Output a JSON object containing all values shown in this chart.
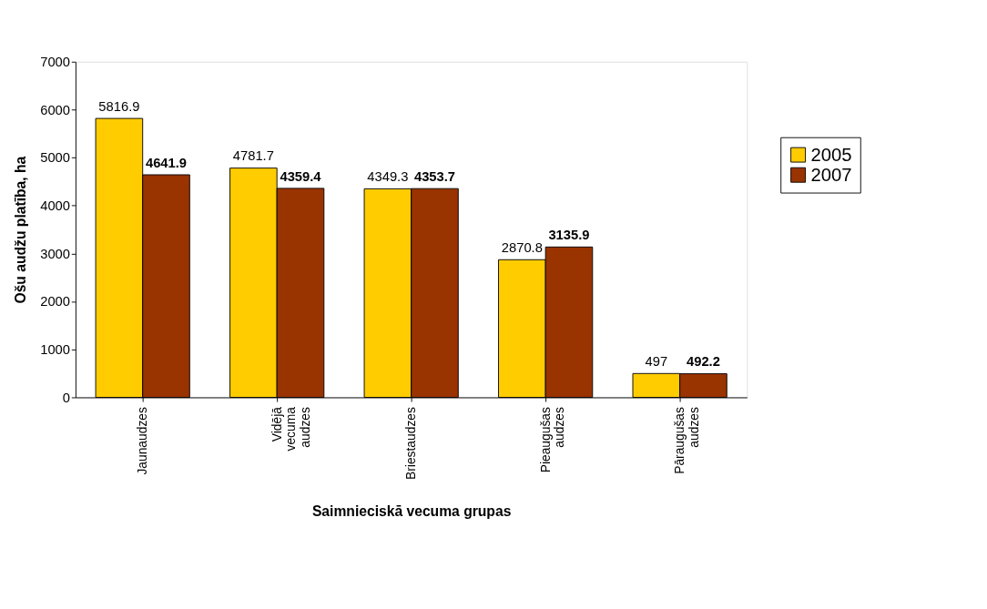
{
  "chart_data": {
    "type": "bar",
    "xlabel": "Saimnieciskā vecuma grupas",
    "ylabel": "Ošu audžu platība, ha",
    "categories": [
      "Jaunaudzes",
      "Vidējā vecuma audzes",
      "Briestaudzes",
      "Pieaugušas audzes",
      "Pāraugušas audzes"
    ],
    "series": [
      {
        "name": "2005",
        "color": "#ffcc00",
        "values": [
          5816.9,
          4781.7,
          4349.3,
          2870.8,
          497
        ]
      },
      {
        "name": "2007",
        "color": "#993300",
        "values": [
          4641.9,
          4359.4,
          4353.7,
          3135.9,
          492.2
        ]
      }
    ],
    "ylim": [
      0,
      7000
    ],
    "yticks": [
      0,
      1000,
      2000,
      3000,
      4000,
      5000,
      6000,
      7000
    ],
    "data_labels": true,
    "grid": false,
    "legend": "right"
  }
}
